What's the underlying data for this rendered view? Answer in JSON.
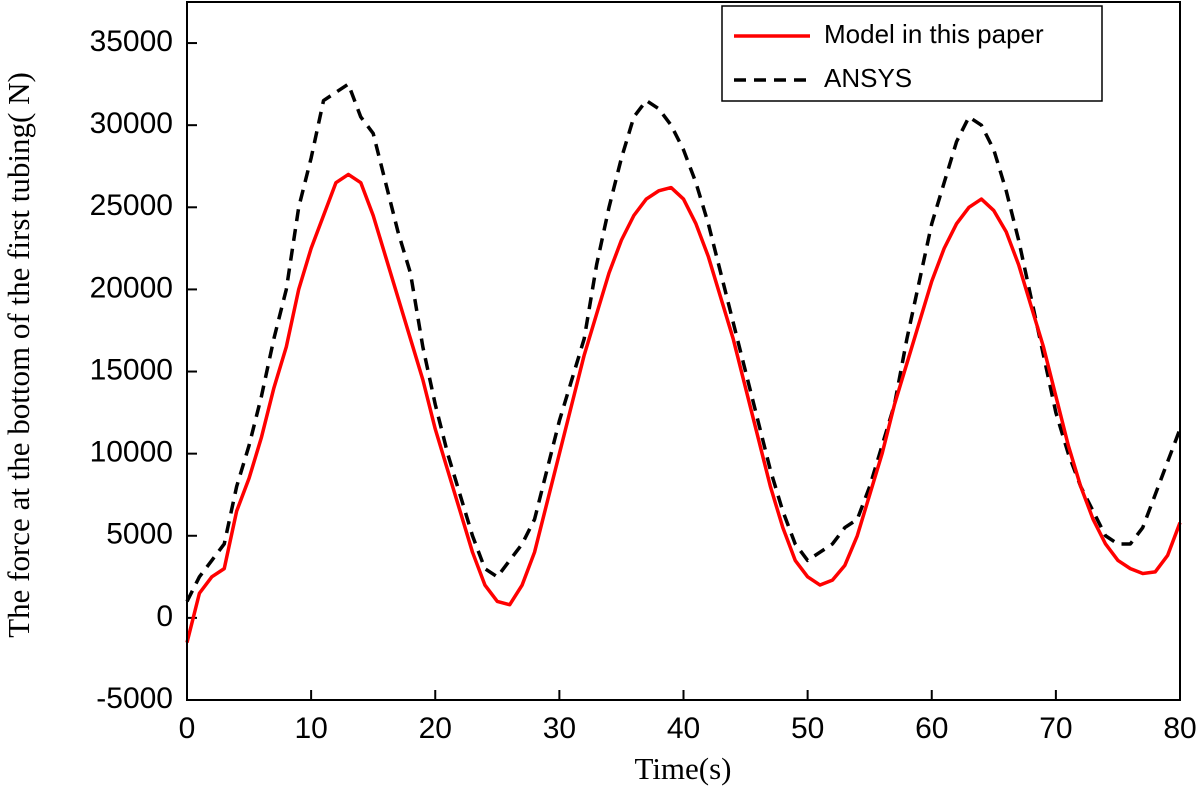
{
  "chart_data": {
    "type": "line",
    "x_label": "Time(s)",
    "y_label": "The force at the bottom of the first tubing( N)",
    "x": [
      0,
      1,
      2,
      3,
      4,
      5,
      6,
      7,
      8,
      9,
      10,
      11,
      12,
      13,
      14,
      15,
      16,
      17,
      18,
      19,
      20,
      21,
      22,
      23,
      24,
      25,
      26,
      27,
      28,
      29,
      30,
      31,
      32,
      33,
      34,
      35,
      36,
      37,
      38,
      39,
      40,
      41,
      42,
      43,
      44,
      45,
      46,
      47,
      48,
      49,
      50,
      51,
      52,
      53,
      54,
      55,
      56,
      57,
      58,
      59,
      60,
      61,
      62,
      63,
      64,
      65,
      66,
      67,
      68,
      69,
      70,
      71,
      72,
      73,
      74,
      75,
      76,
      77,
      78,
      79,
      80
    ],
    "series": [
      {
        "name": "Model in this paper",
        "color": "#ff0000",
        "dash": "solid",
        "values": [
          -1500,
          1500,
          2500,
          3000,
          6500,
          8500,
          11000,
          14000,
          16500,
          20000,
          22500,
          24500,
          26500,
          27000,
          26500,
          24500,
          22000,
          19500,
          17000,
          14500,
          11500,
          9000,
          6500,
          4000,
          2000,
          1000,
          800,
          2000,
          4000,
          7000,
          10000,
          13000,
          16000,
          18500,
          21000,
          23000,
          24500,
          25500,
          26000,
          26200,
          25500,
          24000,
          22000,
          19500,
          17000,
          14000,
          11000,
          8000,
          5500,
          3500,
          2500,
          2000,
          2300,
          3200,
          5000,
          7500,
          10000,
          13000,
          15500,
          18000,
          20500,
          22500,
          24000,
          25000,
          25500,
          24800,
          23500,
          21500,
          19000,
          16500,
          13500,
          10500,
          8000,
          6000,
          4500,
          3500,
          3000,
          2700,
          2800,
          3800,
          5800
        ]
      },
      {
        "name": "ANSYS",
        "color": "#000000",
        "dash": "dashed",
        "values": [
          1000,
          2500,
          3500,
          4500,
          8000,
          10500,
          13500,
          17000,
          20000,
          25000,
          28000,
          31500,
          32000,
          32500,
          30500,
          29500,
          26500,
          23500,
          21000,
          16500,
          13000,
          10000,
          7500,
          5000,
          3000,
          2500,
          3500,
          4500,
          6000,
          9000,
          12000,
          14500,
          17000,
          21500,
          25000,
          28000,
          30500,
          31500,
          31000,
          30000,
          28500,
          26500,
          24000,
          21000,
          18000,
          15000,
          12000,
          9000,
          6500,
          4500,
          3500,
          4000,
          4500,
          5500,
          6000,
          8000,
          10500,
          13000,
          17000,
          20500,
          24000,
          26500,
          29000,
          30500,
          30000,
          28500,
          26000,
          23000,
          19500,
          16000,
          12500,
          10000,
          8000,
          6500,
          5000,
          4500,
          4500,
          5500,
          7500,
          9500,
          11500
        ]
      }
    ],
    "xlim": [
      0,
      80
    ],
    "xticks": [
      0,
      10,
      20,
      30,
      40,
      50,
      60,
      70,
      80
    ],
    "ylim": [
      -5000,
      37500
    ],
    "yticks": [
      -5000,
      0,
      5000,
      10000,
      15000,
      20000,
      25000,
      30000,
      35000
    ],
    "grid": false,
    "legend": "upper right"
  }
}
